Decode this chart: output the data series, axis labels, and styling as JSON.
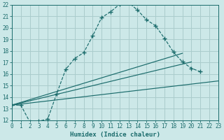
{
  "xlabel": "Humidex (Indice chaleur)",
  "background_color": "#cce8e8",
  "grid_color": "#aacccc",
  "line_color": "#1a6b6b",
  "xlim": [
    0,
    23
  ],
  "ylim": [
    12,
    22
  ],
  "yticks": [
    12,
    13,
    14,
    15,
    16,
    17,
    18,
    19,
    20,
    21,
    22
  ],
  "xticks": [
    0,
    1,
    2,
    3,
    4,
    5,
    6,
    7,
    8,
    9,
    10,
    11,
    12,
    13,
    14,
    15,
    16,
    17,
    18,
    19,
    20,
    21,
    22,
    23
  ],
  "bell_x": [
    0,
    1,
    2,
    3,
    4,
    5,
    6,
    7,
    8,
    9,
    10,
    11,
    12,
    13,
    14,
    15,
    16,
    17,
    18,
    19,
    20,
    21
  ],
  "bell_y": [
    13.3,
    13.3,
    11.85,
    11.9,
    12.1,
    14.3,
    16.4,
    17.35,
    17.85,
    19.3,
    20.9,
    21.4,
    22.05,
    22.2,
    21.55,
    20.7,
    20.2,
    19.1,
    17.9,
    17.05,
    16.5,
    16.2
  ],
  "line1_x": [
    0,
    23
  ],
  "line1_y": [
    13.3,
    15.4
  ],
  "line2_x": [
    0,
    20
  ],
  "line2_y": [
    13.3,
    17.05
  ],
  "line3_x": [
    0,
    19
  ],
  "line3_y": [
    13.3,
    17.8
  ]
}
